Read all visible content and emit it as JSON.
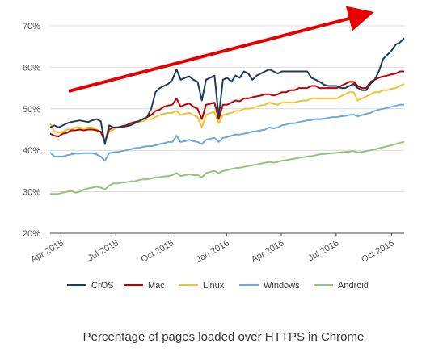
{
  "chart_data": {
    "type": "line",
    "title": "Percentage of pages loaded over HTTPS in Chrome",
    "y_tick_labels": [
      "20%",
      "30%",
      "40%",
      "50%",
      "60%",
      "70%"
    ],
    "x_tick_labels": [
      "Apr 2015",
      "Jul 2015",
      "Oct 2015",
      "Jan 2016",
      "Apr 2016",
      "Jul 2016",
      "Oct 2016"
    ],
    "ylim": [
      20,
      70
    ],
    "grid": true,
    "legend_position": "bottom",
    "x": [
      "2015-03-14",
      "2015-03-21",
      "2015-03-28",
      "2015-04-04",
      "2015-04-11",
      "2015-04-18",
      "2015-04-25",
      "2015-05-02",
      "2015-05-09",
      "2015-05-16",
      "2015-05-23",
      "2015-05-30",
      "2015-06-06",
      "2015-06-13",
      "2015-06-20",
      "2015-06-27",
      "2015-07-04",
      "2015-07-11",
      "2015-07-18",
      "2015-07-25",
      "2015-08-01",
      "2015-08-08",
      "2015-08-15",
      "2015-08-22",
      "2015-08-29",
      "2015-09-05",
      "2015-09-12",
      "2015-09-19",
      "2015-09-26",
      "2015-10-03",
      "2015-10-10",
      "2015-10-17",
      "2015-10-24",
      "2015-10-31",
      "2015-11-07",
      "2015-11-14",
      "2015-11-21",
      "2015-11-28",
      "2015-12-05",
      "2015-12-12",
      "2015-12-19",
      "2015-12-26",
      "2016-01-02",
      "2016-01-09",
      "2016-01-16",
      "2016-01-23",
      "2016-01-30",
      "2016-02-06",
      "2016-02-13",
      "2016-02-20",
      "2016-02-27",
      "2016-03-05",
      "2016-03-12",
      "2016-03-19",
      "2016-03-26",
      "2016-04-02",
      "2016-04-09",
      "2016-04-16",
      "2016-04-23",
      "2016-04-30",
      "2016-05-07",
      "2016-05-14",
      "2016-05-21",
      "2016-05-28",
      "2016-06-04",
      "2016-06-11",
      "2016-06-18",
      "2016-06-25",
      "2016-07-02",
      "2016-07-09",
      "2016-07-16",
      "2016-07-23",
      "2016-07-30",
      "2016-08-06",
      "2016-08-13",
      "2016-08-20",
      "2016-08-27",
      "2016-09-03",
      "2016-09-10",
      "2016-09-17",
      "2016-09-24",
      "2016-10-01",
      "2016-10-08",
      "2016-10-15",
      "2016-10-22"
    ],
    "series": [
      {
        "name": "CrOS",
        "color": "#1c3d5a",
        "values": [
          45.5,
          46.0,
          45.5,
          46.0,
          46.5,
          46.8,
          47.0,
          47.2,
          47.0,
          46.8,
          47.2,
          47.5,
          47.0,
          41.5,
          46.0,
          45.5,
          45.5,
          45.5,
          45.8,
          46.0,
          46.5,
          47.0,
          47.5,
          48.0,
          50.0,
          54.0,
          55.0,
          55.5,
          56.0,
          57.0,
          59.5,
          57.0,
          57.5,
          57.8,
          57.0,
          56.5,
          52.0,
          57.0,
          57.5,
          58.0,
          48.0,
          57.0,
          57.5,
          56.5,
          58.0,
          57.5,
          59.0,
          58.5,
          57.0,
          58.0,
          58.5,
          59.0,
          59.5,
          59.0,
          58.5,
          59.0,
          59.0,
          59.0,
          59.0,
          59.0,
          59.0,
          59.0,
          57.5,
          57.0,
          56.5,
          55.8,
          55.5,
          55.5,
          55.5,
          55.0,
          55.0,
          55.5,
          56.0,
          55.0,
          54.5,
          54.5,
          56.0,
          57.0,
          59.0,
          62.0,
          63.0,
          64.0,
          65.5,
          66.0,
          67.0
        ]
      },
      {
        "name": "Mac",
        "color": "#c00000",
        "values": [
          44.0,
          43.5,
          43.3,
          44.0,
          44.2,
          44.8,
          44.8,
          45.0,
          44.8,
          45.0,
          45.0,
          44.8,
          44.5,
          42.0,
          45.0,
          45.5,
          45.5,
          45.8,
          46.0,
          46.5,
          46.8,
          47.0,
          47.5,
          48.0,
          48.5,
          49.5,
          49.8,
          50.5,
          50.8,
          51.0,
          52.5,
          50.5,
          51.0,
          51.3,
          50.5,
          50.0,
          47.5,
          51.0,
          51.2,
          51.5,
          47.5,
          51.0,
          51.0,
          51.5,
          52.0,
          51.8,
          52.5,
          52.5,
          52.8,
          53.0,
          53.2,
          53.5,
          53.5,
          53.2,
          53.5,
          54.0,
          54.0,
          54.5,
          54.5,
          55.0,
          55.0,
          55.0,
          55.5,
          55.5,
          55.0,
          55.0,
          55.0,
          55.0,
          55.0,
          55.5,
          56.0,
          56.5,
          56.5,
          55.5,
          55.0,
          55.0,
          56.5,
          57.0,
          57.5,
          57.8,
          58.0,
          58.3,
          58.5,
          59.0,
          59.0
        ]
      },
      {
        "name": "Linux",
        "color": "#f2c12e",
        "values": [
          46.5,
          44.5,
          44.3,
          44.5,
          45.0,
          45.0,
          45.5,
          45.5,
          45.3,
          45.5,
          45.5,
          45.0,
          44.5,
          42.0,
          44.5,
          45.0,
          45.5,
          45.8,
          46.0,
          46.2,
          46.5,
          46.8,
          47.0,
          47.5,
          47.5,
          48.0,
          48.5,
          48.8,
          49.0,
          49.0,
          49.5,
          48.5,
          48.8,
          49.0,
          48.5,
          48.0,
          45.5,
          48.5,
          49.0,
          49.2,
          46.5,
          48.5,
          48.8,
          49.0,
          49.5,
          49.5,
          50.0,
          50.0,
          50.2,
          50.5,
          50.8,
          51.0,
          51.5,
          51.2,
          51.0,
          51.5,
          51.5,
          51.5,
          51.5,
          51.8,
          52.0,
          52.0,
          52.5,
          52.5,
          52.5,
          52.5,
          52.5,
          52.5,
          52.5,
          53.0,
          53.5,
          54.0,
          54.0,
          52.0,
          52.5,
          53.0,
          53.5,
          54.0,
          54.0,
          54.5,
          54.5,
          54.8,
          55.0,
          55.5,
          56.0
        ]
      },
      {
        "name": "Windows",
        "color": "#6fa8dc",
        "values": [
          39.5,
          38.5,
          38.5,
          38.5,
          38.8,
          39.0,
          39.2,
          39.2,
          39.3,
          39.3,
          39.3,
          39.0,
          38.5,
          37.5,
          39.3,
          39.5,
          39.6,
          39.8,
          40.0,
          40.2,
          40.5,
          40.6,
          40.8,
          41.0,
          41.0,
          41.2,
          41.5,
          41.7,
          42.0,
          42.0,
          43.5,
          42.0,
          42.2,
          42.5,
          42.2,
          42.0,
          41.5,
          42.5,
          42.8,
          43.0,
          42.0,
          43.0,
          43.2,
          43.5,
          43.8,
          43.8,
          44.0,
          44.2,
          44.5,
          44.6,
          44.8,
          45.0,
          45.5,
          45.3,
          45.5,
          46.0,
          46.2,
          46.5,
          46.5,
          46.8,
          47.0,
          47.2,
          47.3,
          47.5,
          47.5,
          47.6,
          47.8,
          48.0,
          48.0,
          48.2,
          48.3,
          48.5,
          48.6,
          48.2,
          48.5,
          48.8,
          49.0,
          49.5,
          49.8,
          50.0,
          50.2,
          50.5,
          50.7,
          51.0,
          51.0
        ]
      },
      {
        "name": "Android",
        "color": "#93c47d",
        "values": [
          29.5,
          29.5,
          29.5,
          29.8,
          30.0,
          30.2,
          29.8,
          30.0,
          30.5,
          30.8,
          31.0,
          31.2,
          31.0,
          30.5,
          31.5,
          32.0,
          32.0,
          32.2,
          32.3,
          32.5,
          32.5,
          32.8,
          33.0,
          33.0,
          33.2,
          33.5,
          33.5,
          33.7,
          33.8,
          34.0,
          34.5,
          33.8,
          34.0,
          34.2,
          34.0,
          34.0,
          33.5,
          34.5,
          34.8,
          35.0,
          34.5,
          35.0,
          35.2,
          35.5,
          35.7,
          35.8,
          36.0,
          36.2,
          36.4,
          36.6,
          36.8,
          37.0,
          37.2,
          37.0,
          37.2,
          37.5,
          37.6,
          37.8,
          38.0,
          38.2,
          38.3,
          38.5,
          38.6,
          38.8,
          39.0,
          39.1,
          39.2,
          39.3,
          39.4,
          39.5,
          39.6,
          39.7,
          39.8,
          39.5,
          39.6,
          39.8,
          40.0,
          40.2,
          40.5,
          40.7,
          41.0,
          41.2,
          41.5,
          41.8,
          42.0
        ]
      }
    ]
  }
}
